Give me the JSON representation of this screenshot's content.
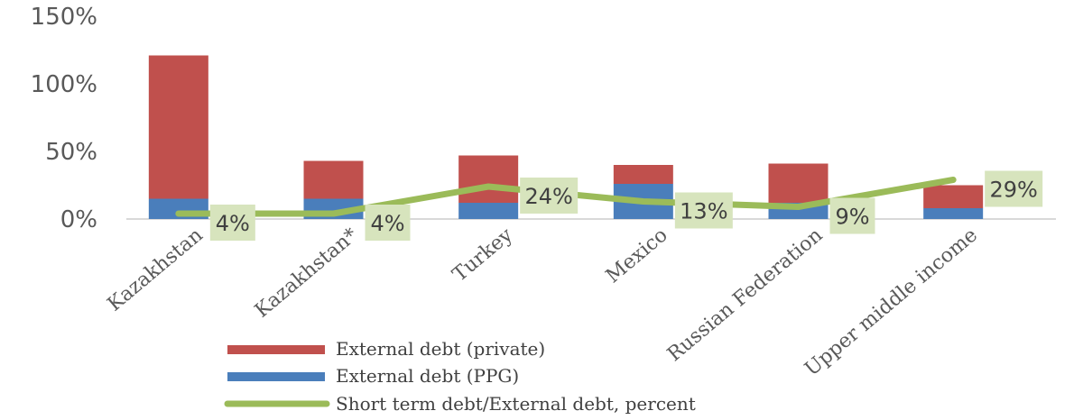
{
  "chart_data": {
    "type": "bar",
    "title": "",
    "categories": [
      "Kazakhstan",
      "Kazakhstan*",
      "Turkey",
      "Mexico",
      "Russian Federation",
      "Upper middle income"
    ],
    "series": [
      {
        "name": "External debt (PPG)",
        "kind": "stacked-bar",
        "color": "#4a7ebb",
        "values": [
          15,
          15,
          12,
          26,
          12,
          8
        ]
      },
      {
        "name": "External debt (private)",
        "kind": "stacked-bar",
        "color": "#c0504d",
        "values": [
          106,
          28,
          35,
          14,
          29,
          17
        ]
      },
      {
        "name": "Short term debt/External debt, percent",
        "kind": "line",
        "color": "#9bbb59",
        "values": [
          4,
          4,
          24,
          13,
          9,
          29
        ]
      }
    ],
    "data_labels": [
      "4%",
      "4%",
      "24%",
      "13%",
      "9%",
      "29%"
    ],
    "ylim": [
      0,
      150
    ],
    "yticks": [
      0,
      50,
      100,
      150
    ],
    "ytick_labels": [
      "0%",
      "50%",
      "100%",
      "150%"
    ],
    "legend": {
      "position": "bottom",
      "entries": [
        "External debt (private)",
        "External debt (PPG)",
        "Short term debt/External debt, percent"
      ]
    },
    "colors": {
      "private": "#c0504d",
      "ppg": "#4a7ebb",
      "line": "#9bbb59",
      "label_bg": "#d7e4bd"
    }
  }
}
